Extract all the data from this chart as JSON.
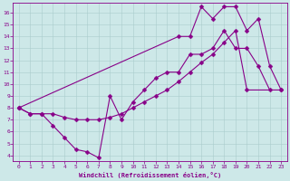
{
  "xlabel": "Windchill (Refroidissement éolien,°C)",
  "background_color": "#cde8e8",
  "line_color": "#880088",
  "xlim": [
    -0.5,
    23.5
  ],
  "ylim": [
    3.5,
    16.8
  ],
  "yticks": [
    4,
    5,
    6,
    7,
    8,
    9,
    10,
    11,
    12,
    13,
    14,
    15,
    16
  ],
  "xticks": [
    0,
    1,
    2,
    3,
    4,
    5,
    6,
    7,
    8,
    9,
    10,
    11,
    12,
    13,
    14,
    15,
    16,
    17,
    18,
    19,
    20,
    21,
    22,
    23
  ],
  "grid_color": "#aacccc",
  "series1_x": [
    0,
    1,
    2,
    3,
    4,
    5,
    6,
    7,
    8,
    9,
    10,
    11,
    12,
    13,
    14,
    15,
    16,
    17,
    18,
    19,
    20,
    21,
    22
  ],
  "series1_y": [
    8.0,
    7.5,
    7.5,
    6.5,
    5.5,
    4.5,
    4.3,
    3.8,
    9.0,
    7.0,
    8.5,
    9.5,
    10.5,
    11.0,
    11.0,
    12.5,
    12.5,
    13.0,
    14.5,
    13.0,
    13.0,
    11.5,
    9.5
  ],
  "series2_x": [
    0,
    1,
    2,
    3,
    4,
    5,
    6,
    7,
    8,
    9,
    10,
    11,
    12,
    13,
    14,
    15,
    16,
    17,
    18,
    19,
    20,
    23
  ],
  "series2_y": [
    8.0,
    7.5,
    7.5,
    7.5,
    7.2,
    7.0,
    7.0,
    7.0,
    7.2,
    7.5,
    8.0,
    8.5,
    9.0,
    9.5,
    10.2,
    11.0,
    11.8,
    12.5,
    13.5,
    14.5,
    9.5,
    9.5
  ],
  "series3_x": [
    0,
    14,
    15,
    16,
    17,
    18,
    19,
    20,
    21,
    22,
    23
  ],
  "series3_y": [
    8.0,
    14.0,
    14.0,
    16.5,
    15.5,
    16.5,
    16.5,
    14.5,
    15.5,
    11.5,
    9.5
  ],
  "markersize": 2.5,
  "linewidth": 0.8
}
